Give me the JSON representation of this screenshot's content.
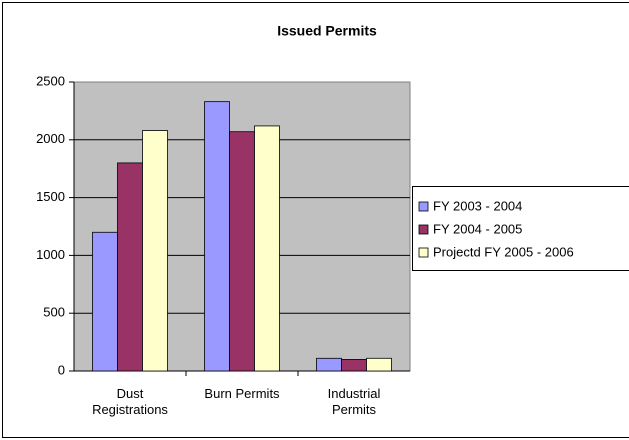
{
  "chart_data": {
    "type": "bar",
    "title": "Issued Permits",
    "categories": [
      "Dust Registrations",
      "Burn Permits",
      "Industrial Permits"
    ],
    "series": [
      {
        "name": "FY 2003 - 2004",
        "color": "#9999ff",
        "values": [
          1200,
          2330,
          110
        ]
      },
      {
        "name": "FY 2004 - 2005",
        "color": "#993366",
        "values": [
          1800,
          2070,
          100
        ]
      },
      {
        "name": "Projectd FY 2005 - 2006",
        "color": "#ffffcc",
        "values": [
          2080,
          2120,
          110
        ]
      }
    ],
    "ylim": [
      0,
      2500
    ],
    "yticks": [
      0,
      500,
      1000,
      1500,
      2000,
      2500
    ],
    "grid": true,
    "legend": "right"
  }
}
